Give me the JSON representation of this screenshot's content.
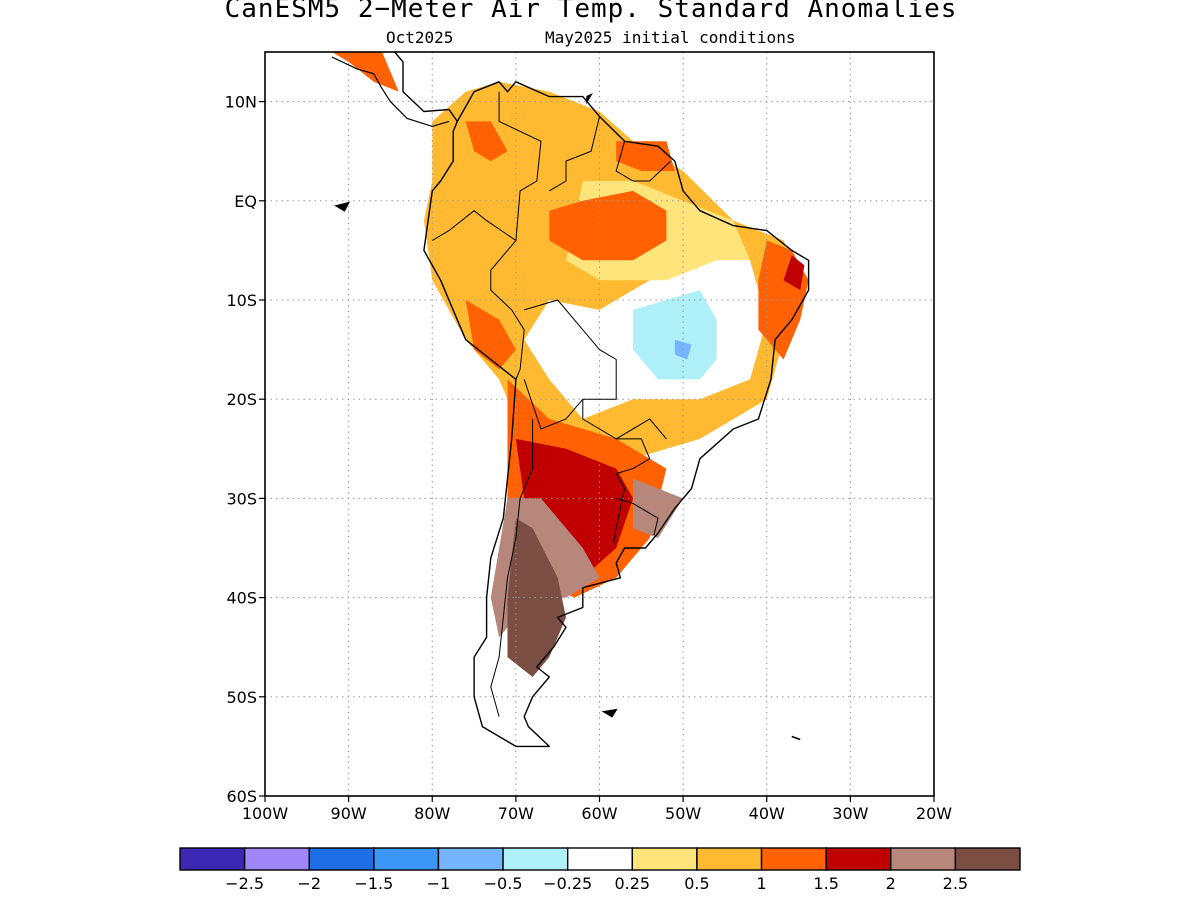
{
  "header": {
    "title": "CanESM5 2−Meter Air Temp. Standard Anomalies",
    "valid_month": "Oct2025",
    "initial_conditions": "May2025 initial conditions"
  },
  "map": {
    "region": "South America",
    "projection": "lat-lon",
    "lon_range": [
      -100,
      -20
    ],
    "lat_range": [
      -60,
      15
    ],
    "lat_ticks": [
      {
        "lat": 10,
        "label": "10N"
      },
      {
        "lat": 0,
        "label": "EQ"
      },
      {
        "lat": -10,
        "label": "10S"
      },
      {
        "lat": -20,
        "label": "20S"
      },
      {
        "lat": -30,
        "label": "30S"
      },
      {
        "lat": -40,
        "label": "40S"
      },
      {
        "lat": -50,
        "label": "50S"
      },
      {
        "lat": -60,
        "label": "60S"
      }
    ],
    "lon_ticks": [
      {
        "lon": -100,
        "label": "100W"
      },
      {
        "lon": -90,
        "label": "90W"
      },
      {
        "lon": -80,
        "label": "80W"
      },
      {
        "lon": -70,
        "label": "70W"
      },
      {
        "lon": -60,
        "label": "60W"
      },
      {
        "lon": -50,
        "label": "50W"
      },
      {
        "lon": -40,
        "label": "40W"
      },
      {
        "lon": -30,
        "label": "30W"
      },
      {
        "lon": -20,
        "label": "20W"
      }
    ],
    "grid": "dotted",
    "anomaly_regions": [
      {
        "name": "andes-warm",
        "class": 0.5,
        "color": "#ffba31",
        "poly": [
          [
            -80,
            8
          ],
          [
            -76,
            11
          ],
          [
            -72,
            12
          ],
          [
            -66,
            11
          ],
          [
            -60,
            9
          ],
          [
            -56,
            6
          ],
          [
            -50,
            3
          ],
          [
            -44,
            -2
          ],
          [
            -38,
            -4
          ],
          [
            -36,
            -8
          ],
          [
            -38,
            -14
          ],
          [
            -40,
            -20
          ],
          [
            -48,
            -24
          ],
          [
            -56,
            -26
          ],
          [
            -64,
            -26
          ],
          [
            -70,
            -22
          ],
          [
            -72,
            -18
          ],
          [
            -76,
            -14
          ],
          [
            -80,
            -8
          ],
          [
            -81,
            -2
          ],
          [
            -80,
            2
          ]
        ]
      },
      {
        "name": "brazil-neutral",
        "class": 0,
        "color": "#ffffff",
        "poly": [
          [
            -66,
            -10
          ],
          [
            -60,
            -11
          ],
          [
            -54,
            -8
          ],
          [
            -46,
            -4
          ],
          [
            -42,
            -6
          ],
          [
            -40,
            -12
          ],
          [
            -42,
            -18
          ],
          [
            -48,
            -20
          ],
          [
            -56,
            -20
          ],
          [
            -62,
            -22
          ],
          [
            -66,
            -18
          ],
          [
            -69,
            -14
          ]
        ]
      },
      {
        "name": "brazil-cool",
        "class": -0.25,
        "color": "#aff0f8",
        "poly": [
          [
            -56,
            -11
          ],
          [
            -52,
            -10
          ],
          [
            -48,
            -9
          ],
          [
            -46,
            -12
          ],
          [
            -46,
            -16
          ],
          [
            -48,
            -18
          ],
          [
            -53,
            -18
          ],
          [
            -56,
            -15
          ]
        ]
      },
      {
        "name": "brazil-cool-core",
        "class": -0.5,
        "color": "#75b4ff",
        "poly": [
          [
            -51,
            -14
          ],
          [
            -49,
            -14.5
          ],
          [
            -49.5,
            -16
          ],
          [
            -51,
            -15.5
          ]
        ]
      },
      {
        "name": "north-light-warm",
        "class": 0.25,
        "color": "#ffe47b",
        "poly": [
          [
            -62,
            2
          ],
          [
            -56,
            2
          ],
          [
            -50,
            0
          ],
          [
            -44,
            -2
          ],
          [
            -42,
            -6
          ],
          [
            -46,
            -6
          ],
          [
            -52,
            -8
          ],
          [
            -60,
            -8
          ],
          [
            -64,
            -6
          ]
        ]
      },
      {
        "name": "amazon-warm",
        "class": 1,
        "color": "#ff6103",
        "poly": [
          [
            -66,
            -1
          ],
          [
            -62,
            0
          ],
          [
            -56,
            1
          ],
          [
            -52,
            -1
          ],
          [
            -52,
            -4
          ],
          [
            -56,
            -6
          ],
          [
            -62,
            -6
          ],
          [
            -66,
            -4
          ]
        ]
      },
      {
        "name": "ne-brazil-warm",
        "class": 1,
        "color": "#ff6103",
        "poly": [
          [
            -40,
            -4
          ],
          [
            -37,
            -5
          ],
          [
            -35,
            -8
          ],
          [
            -36,
            -12
          ],
          [
            -38,
            -16
          ],
          [
            -41,
            -13
          ],
          [
            -41,
            -8
          ]
        ]
      },
      {
        "name": "ne-brazil-hot",
        "class": 1.5,
        "color": "#c00000",
        "poly": [
          [
            -37,
            -5.5
          ],
          [
            -35.5,
            -6.5
          ],
          [
            -36,
            -9
          ],
          [
            -38,
            -8
          ]
        ]
      },
      {
        "name": "colombia-warm",
        "class": 1,
        "color": "#ff6103",
        "poly": [
          [
            -76,
            8
          ],
          [
            -73,
            8
          ],
          [
            -71,
            5
          ],
          [
            -73,
            4
          ],
          [
            -75,
            5
          ]
        ]
      },
      {
        "name": "guyana-warm",
        "class": 1,
        "color": "#ff6103",
        "poly": [
          [
            -58,
            6
          ],
          [
            -52,
            6
          ],
          [
            -51,
            3
          ],
          [
            -55,
            3
          ],
          [
            -58,
            4
          ]
        ]
      },
      {
        "name": "peru-warm",
        "class": 1,
        "color": "#ff6103",
        "poly": [
          [
            -76,
            -10
          ],
          [
            -72,
            -12
          ],
          [
            -70,
            -15
          ],
          [
            -72,
            -17
          ],
          [
            -75,
            -15
          ]
        ]
      },
      {
        "name": "central-america-warm",
        "class": 1,
        "color": "#ff6103",
        "poly": [
          [
            -92,
            15
          ],
          [
            -86,
            15
          ],
          [
            -84,
            11
          ],
          [
            -87,
            12
          ],
          [
            -90,
            14
          ]
        ]
      },
      {
        "name": "south-warm",
        "class": 1,
        "color": "#ff6103",
        "poly": [
          [
            -71,
            -18
          ],
          [
            -66,
            -22
          ],
          [
            -58,
            -24
          ],
          [
            -52,
            -27
          ],
          [
            -54,
            -34
          ],
          [
            -58,
            -38
          ],
          [
            -63,
            -40
          ],
          [
            -68,
            -38
          ],
          [
            -71,
            -30
          ]
        ]
      },
      {
        "name": "south-hot",
        "class": 1.5,
        "color": "#c00000",
        "poly": [
          [
            -70,
            -24
          ],
          [
            -64,
            -25
          ],
          [
            -58,
            -27
          ],
          [
            -56,
            -30
          ],
          [
            -58,
            -35
          ],
          [
            -62,
            -38
          ],
          [
            -66,
            -37
          ],
          [
            -69,
            -30
          ]
        ]
      },
      {
        "name": "patagonia-very-hot",
        "class": 2,
        "color": "#b6877a",
        "poly": [
          [
            -71,
            -30
          ],
          [
            -67,
            -30
          ],
          [
            -62,
            -35
          ],
          [
            -60,
            -38
          ],
          [
            -64,
            -40
          ],
          [
            -68,
            -40
          ],
          [
            -72,
            -44
          ],
          [
            -73,
            -40
          ]
        ]
      },
      {
        "name": "uruguay-very-hot",
        "class": 2,
        "color": "#b6877a",
        "poly": [
          [
            -56,
            -28
          ],
          [
            -53,
            -29
          ],
          [
            -50,
            -30
          ],
          [
            -53,
            -34
          ],
          [
            -56,
            -33
          ]
        ]
      },
      {
        "name": "patagonia-extreme",
        "class": 2.5,
        "color": "#7a4e42",
        "poly": [
          [
            -70,
            -32
          ],
          [
            -68,
            -33
          ],
          [
            -65,
            -38
          ],
          [
            -64,
            -42
          ],
          [
            -66,
            -46
          ],
          [
            -68,
            -48
          ],
          [
            -71,
            -46
          ],
          [
            -71,
            -40
          ]
        ]
      }
    ]
  },
  "colorbar": {
    "colors": [
      "#3c28b4",
      "#9f87f9",
      "#1e6ee8",
      "#3c96f5",
      "#75b4ff",
      "#aff0f8",
      "#ffffff",
      "#ffe47b",
      "#ffba31",
      "#ff6103",
      "#c00000",
      "#b6877a",
      "#7a4e42"
    ],
    "labels": [
      "−2.5",
      "−2",
      "−1.5",
      "−1",
      "−0.5",
      "−0.25",
      "0.25",
      "0.5",
      "1",
      "1.5",
      "2",
      "2.5"
    ]
  }
}
